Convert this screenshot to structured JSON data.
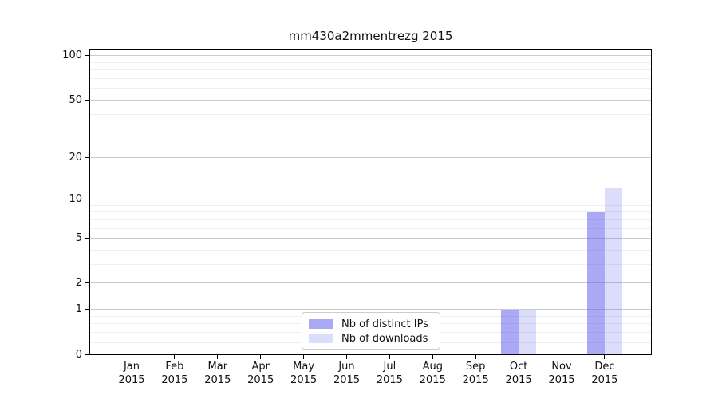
{
  "chart_data": {
    "type": "bar",
    "title": "mm430a2mmentrezg 2015",
    "year": "2015",
    "categories": [
      "Jan",
      "Feb",
      "Mar",
      "Apr",
      "May",
      "Jun",
      "Jul",
      "Aug",
      "Sep",
      "Oct",
      "Nov",
      "Dec"
    ],
    "series": [
      {
        "name": "Nb of distinct IPs",
        "color": "rgba(90,90,235,0.52)",
        "values": [
          0,
          0,
          0,
          0,
          0,
          0,
          0,
          0,
          0,
          1,
          0,
          8
        ]
      },
      {
        "name": "Nb of downloads",
        "color": "rgba(90,90,235,0.21)",
        "values": [
          0,
          0,
          0,
          0,
          0,
          0,
          0,
          0,
          0,
          1,
          0,
          12
        ]
      }
    ],
    "y_axis": {
      "scale": "log10(1+v)",
      "ticks": [
        0,
        1,
        2,
        5,
        10,
        20,
        50,
        100
      ],
      "minor_gridlines": [
        0.2,
        0.4,
        0.6,
        0.8,
        3,
        4,
        6,
        7,
        8,
        9,
        30,
        40,
        60,
        70,
        80,
        90
      ],
      "range": [
        0,
        112
      ]
    },
    "xlabel": "",
    "ylabel": "",
    "grid": true,
    "legend_position": "bottom-center"
  }
}
